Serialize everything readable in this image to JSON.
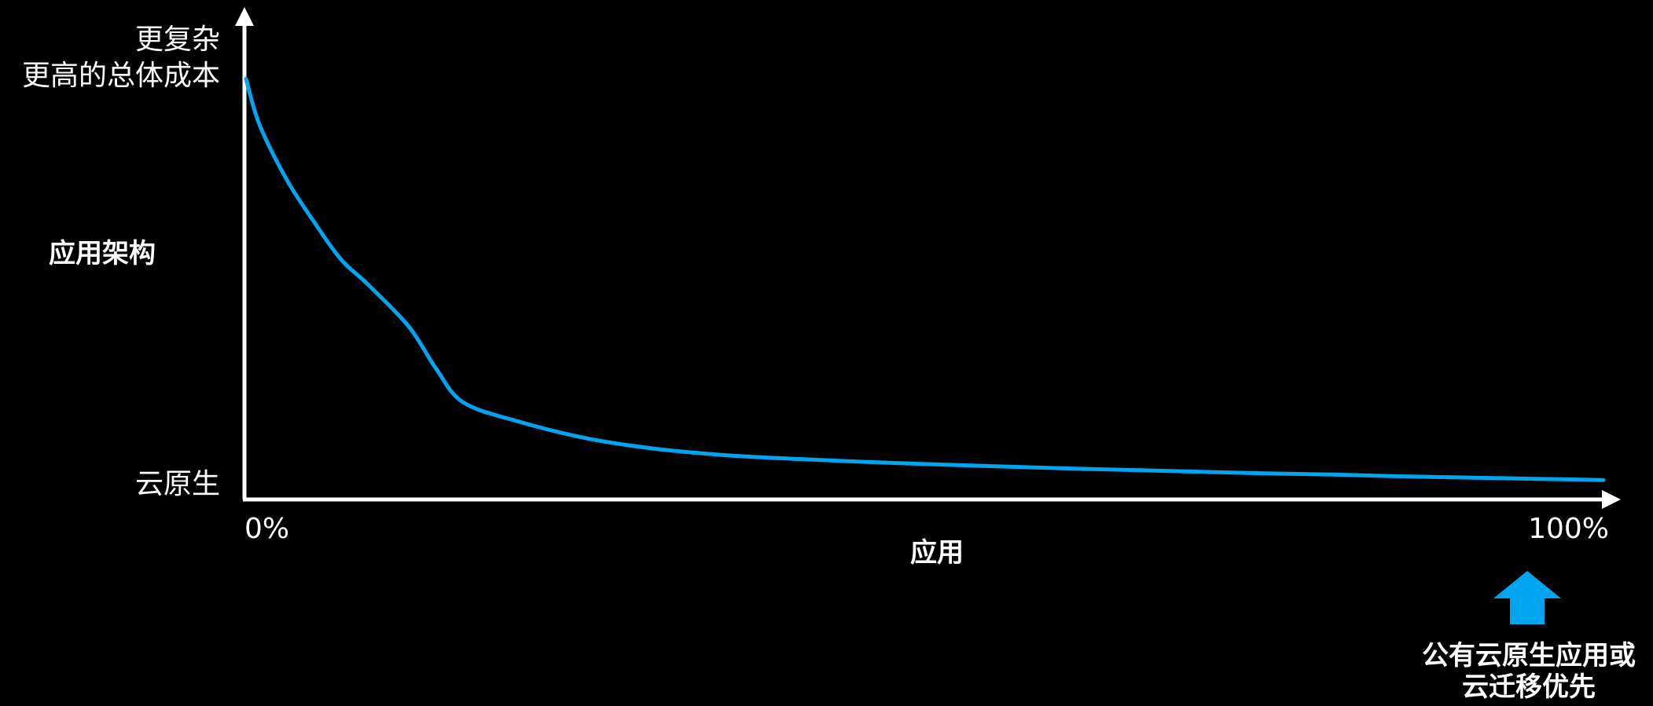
{
  "chart_data": {
    "type": "line",
    "title": "",
    "xlabel": "应用",
    "ylabel": "应用架构",
    "x_tick_labels": [
      "0%",
      "100%"
    ],
    "y_tick_labels": {
      "top": [
        "更复杂",
        "更高的总体成本"
      ],
      "bottom": "云原生"
    },
    "xlim": [
      0,
      100
    ],
    "ylim": [
      0,
      100
    ],
    "grid": false,
    "legend": "none",
    "series": [
      {
        "x": [
          0,
          1,
          3,
          5,
          7,
          9,
          12,
          14,
          16,
          20,
          25,
          30,
          35,
          40,
          45,
          50,
          55,
          60,
          65,
          70,
          75,
          80,
          85,
          90,
          95,
          100
        ],
        "y": [
          99,
          88,
          75,
          65,
          56,
          50,
          40,
          30,
          22,
          17.5,
          13.5,
          11,
          9.5,
          8.6,
          7.9,
          7.3,
          6.8,
          6.3,
          5.9,
          5.5,
          5.1,
          4.8,
          4.4,
          4.1,
          3.8,
          3.5
        ]
      }
    ],
    "annotations": [
      {
        "text": "公有云原生应用或\n云迁移优先",
        "at_x": 94,
        "marker": "up-arrow"
      }
    ]
  },
  "labels": {
    "y_top_line1": "更复杂",
    "y_top_line2": "更高的总体成本",
    "y_bottom": "云原生",
    "y_title": "应用架构",
    "x_tick_start": "0%",
    "x_tick_end": "100%",
    "x_title": "应用",
    "callout_line1": "公有云原生应用或",
    "callout_line2": "云迁移优先"
  },
  "colors": {
    "background": "#000000",
    "axis": "#ffffff",
    "curve": "#00a4ef",
    "callout_arrow": "#00a4ef",
    "text": "#ffffff"
  }
}
